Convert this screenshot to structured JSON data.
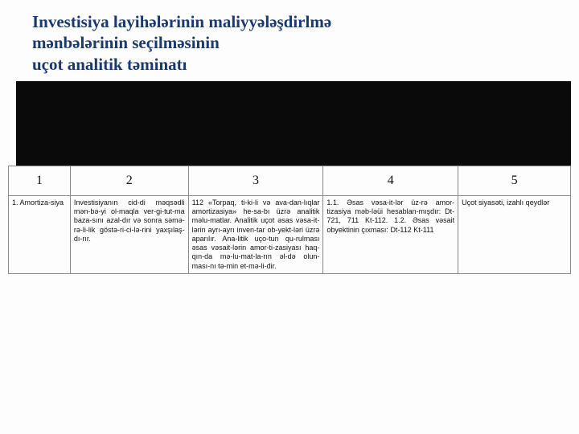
{
  "title": {
    "line1": "Investisiya layihələrinin maliyyələşdirlmə",
    "line2": "mənbələrinin seçilməsinin",
    "line3": "uçot analitik təminatı"
  },
  "colors": {
    "title_color": "#1a3a6e",
    "band_color": "#0a0a0a",
    "border_color": "#888888",
    "text_color": "#111111",
    "background": "#fdfdfd"
  },
  "table": {
    "headers": [
      "1",
      "2",
      "3",
      "4",
      "5"
    ],
    "rows": [
      {
        "c1": "1. Amortiza-siya",
        "c2": "Investisiyanın cid-di məqsədli mən-bə-yi ol-maqla ver-gi-tut-ma baza-sını azal-dır və sonra səmə-rə-li-lik göstə-ri-ci-lə-rini yaxşılaş-dı-rır.",
        "c3": "112 «Torpaq, ti-ki-li və ava-dan-lıqlar amortizasiya» he-sa-bı üzrə analitik məlu-matlar. Analitik uçot əsas vəsa-it-lərin ayrı-ayrı inven-tar ob-yekt-ləri üzrə aparılır. Ana-litik uço-tun qu-rulması əsas vəsait-lərin amor-ti-zasiyası haq-qın-da mə-lu-mat-la-rın əl-də olun-ması-nı tə-min et-mə-li-dir.",
        "c4": "1.1. Əsas vəsa-it-lər üz-rə amor-tizasiya məb-ləüi hesablan-mışdır: Dt-721, 711 Kt-112.\n1.2. Əsas vəsait obyektinin çıxması: Dt-112 Kt-111",
        "c5": "Uçot siyasəti, izahlı qeydlər"
      }
    ]
  }
}
